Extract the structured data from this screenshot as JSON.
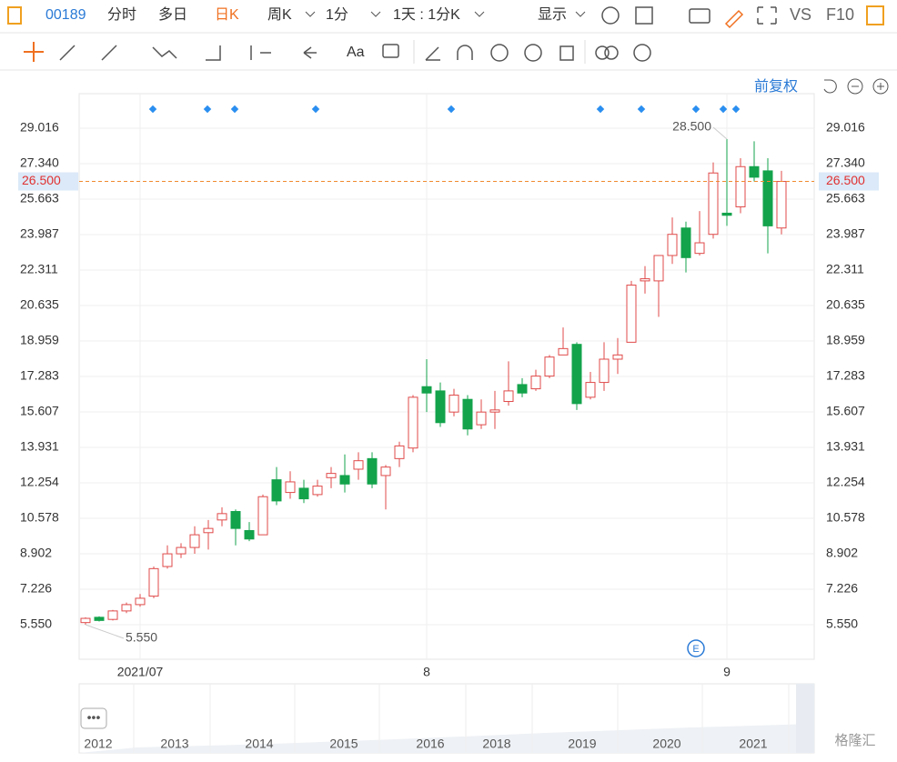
{
  "toolbar": {
    "code": "00189",
    "tabs": [
      "分时",
      "多日",
      "日K",
      "周K",
      "1分",
      "1天 : 1分K",
      "显示",
      "VS",
      "F10"
    ],
    "font_button": "Aa",
    "adjust": "前复权"
  },
  "chart_data": {
    "type": "candlestick",
    "categories": [
      null,
      null,
      null,
      null,
      "2021/07",
      null,
      null,
      null,
      null,
      null,
      null,
      null,
      null,
      null,
      null,
      null,
      null,
      null,
      null,
      null,
      null,
      null,
      null,
      null,
      null,
      "8",
      null,
      null,
      null,
      null,
      null,
      null,
      null,
      null,
      null,
      null,
      null,
      null,
      null,
      null,
      null,
      null,
      null,
      null,
      null,
      null,
      null,
      "9",
      null,
      null,
      null,
      null
    ],
    "open": [
      5.65,
      5.9,
      5.8,
      6.2,
      6.5,
      6.9,
      8.3,
      8.9,
      9.2,
      9.9,
      10.5,
      10.9,
      10.0,
      9.8,
      12.4,
      11.8,
      12.0,
      11.7,
      12.5,
      12.6,
      12.9,
      13.4,
      12.6,
      13.4,
      13.9,
      16.8,
      16.6,
      15.6,
      16.2,
      15.0,
      15.6,
      16.1,
      16.9,
      16.7,
      17.3,
      18.3,
      18.8,
      16.3,
      17.0,
      18.1,
      18.9,
      21.8,
      21.8,
      23.0,
      24.3,
      23.1,
      24.0,
      25.0,
      25.3,
      27.2,
      27.0,
      24.3
    ],
    "high": [
      5.9,
      5.95,
      6.25,
      6.6,
      7.0,
      8.3,
      9.3,
      9.4,
      10.2,
      10.5,
      11.1,
      11.0,
      10.4,
      11.7,
      13.0,
      12.8,
      12.4,
      12.4,
      13.0,
      13.6,
      13.7,
      13.7,
      13.1,
      14.2,
      16.4,
      18.1,
      17.0,
      16.7,
      16.4,
      16.2,
      16.6,
      18.0,
      17.2,
      17.6,
      18.3,
      19.6,
      18.9,
      17.5,
      18.9,
      19.1,
      21.8,
      22.5,
      23.0,
      24.8,
      24.6,
      25.1,
      27.4,
      28.5,
      27.6,
      28.4,
      27.6,
      27.0
    ],
    "low": [
      5.55,
      5.7,
      5.75,
      6.1,
      6.4,
      6.8,
      8.2,
      8.7,
      8.9,
      9.1,
      10.2,
      9.3,
      9.5,
      9.8,
      11.2,
      11.5,
      11.3,
      11.6,
      12.0,
      11.8,
      12.4,
      12.0,
      11.0,
      13.0,
      13.7,
      15.6,
      14.9,
      15.4,
      14.5,
      14.8,
      14.8,
      15.9,
      16.3,
      16.6,
      17.2,
      18.3,
      15.7,
      16.2,
      16.6,
      17.4,
      18.9,
      21.2,
      20.1,
      22.6,
      22.2,
      23.0,
      23.8,
      24.4,
      25.0,
      26.5,
      23.1,
      24.0
    ],
    "close": [
      5.85,
      5.75,
      6.2,
      6.5,
      6.8,
      8.2,
      8.9,
      9.2,
      9.8,
      10.1,
      10.8,
      10.1,
      9.6,
      11.6,
      11.4,
      12.3,
      11.5,
      12.1,
      12.7,
      12.2,
      13.3,
      12.2,
      13.0,
      14.0,
      16.3,
      16.5,
      15.1,
      16.4,
      14.8,
      15.6,
      15.7,
      16.6,
      16.5,
      17.3,
      18.2,
      18.6,
      16.0,
      17.0,
      18.1,
      18.3,
      21.6,
      21.9,
      23.0,
      24.0,
      22.9,
      23.6,
      26.9,
      24.9,
      27.2,
      26.7,
      24.4,
      26.5
    ],
    "up_color": "#e04a4a",
    "down_color": "#13a34b",
    "ylim": [
      3.917,
      30.649
    ],
    "yticks": [
      {
        "value": 5.55,
        "label": "5.550"
      },
      {
        "value": 7.226,
        "label": "7.226"
      },
      {
        "value": 8.902,
        "label": "8.902"
      },
      {
        "value": 10.578,
        "label": "10.578"
      },
      {
        "value": 12.254,
        "label": "12.254"
      },
      {
        "value": 13.931,
        "label": "13.931"
      },
      {
        "value": 15.607,
        "label": "15.607"
      },
      {
        "value": 17.283,
        "label": "17.283"
      },
      {
        "value": 18.959,
        "label": "18.959"
      },
      {
        "value": 20.635,
        "label": "20.635"
      },
      {
        "value": 22.311,
        "label": "22.311"
      },
      {
        "value": 23.987,
        "label": "23.987"
      },
      {
        "value": 25.663,
        "label": "25.663"
      },
      {
        "value": 27.34,
        "label": "27.340"
      },
      {
        "value": 29.016,
        "label": "29.016"
      }
    ],
    "current_price": {
      "value": 26.5,
      "label": "26.500"
    },
    "annotations": [
      {
        "value": 28.5,
        "label": "28.500"
      },
      {
        "value": 5.55,
        "label": "5.550"
      }
    ],
    "grid": true
  },
  "navigator": {
    "years": [
      "2012",
      "2013",
      "2014",
      "2015",
      "2016",
      "2018",
      "2019",
      "2020",
      "2021"
    ]
  },
  "watermark": "格隆汇"
}
